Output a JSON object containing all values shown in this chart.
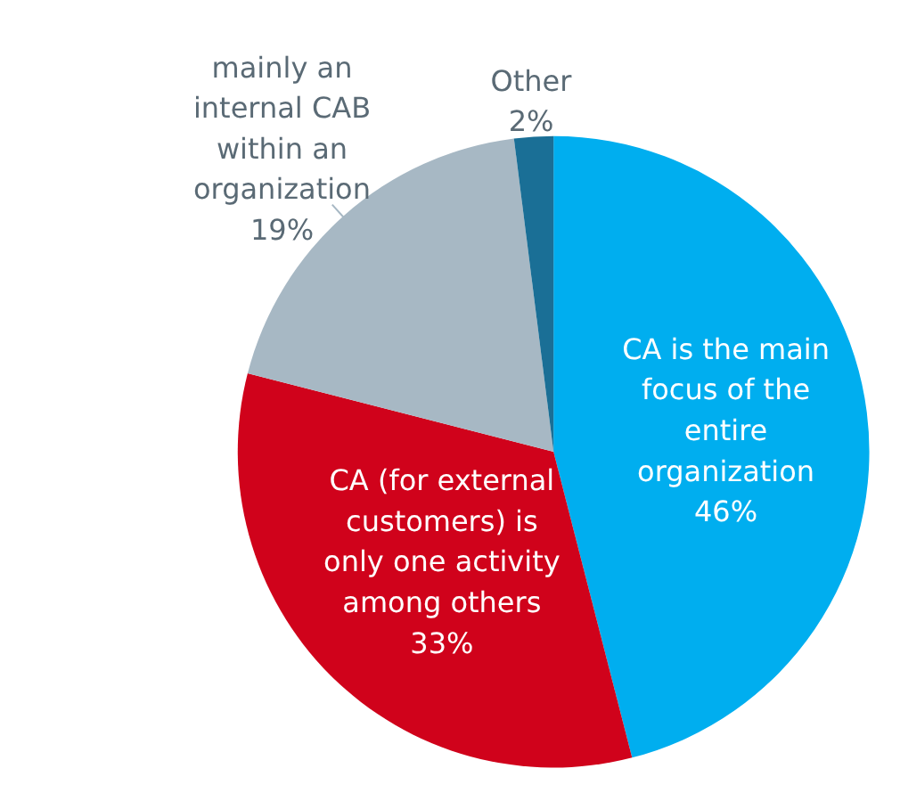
{
  "chart_data": {
    "type": "pie",
    "categories": [
      "CA is the main focus of the entire organization",
      "CA (for external customers) is only one activity among others",
      "mainly an internal CAB within an organization",
      "Other"
    ],
    "values": [
      46,
      33,
      19,
      2
    ],
    "value_labels": [
      "46%",
      "33%",
      "19%",
      "2%"
    ],
    "colors": [
      "#00aeef",
      "#d0021b",
      "#a7b8c4",
      "#1a6f96"
    ]
  }
}
